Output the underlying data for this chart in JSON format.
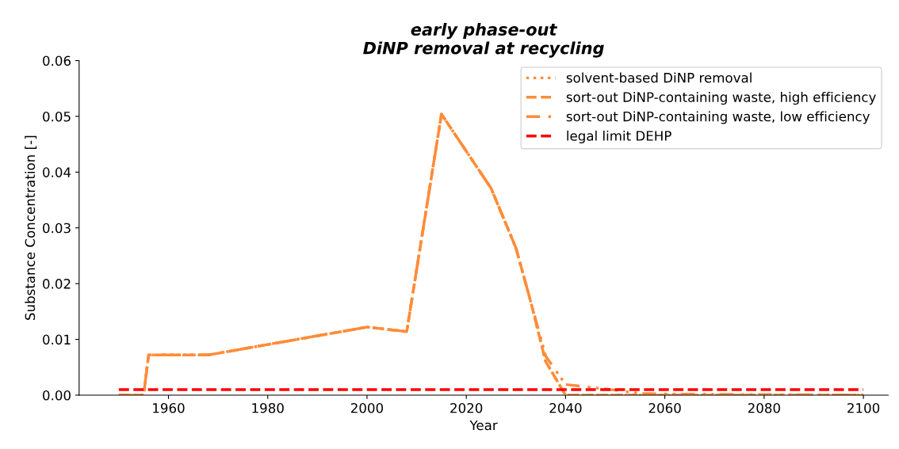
{
  "chart_data": {
    "type": "line",
    "title": "early phase-out\nDiNP removal at recycling",
    "xlabel": "Year",
    "ylabel": "Substance Concentration [-]",
    "xlim": [
      1942,
      2105
    ],
    "xticks": [
      1960,
      1980,
      2000,
      2020,
      2040,
      2060,
      2080,
      2100
    ],
    "ylim": [
      0,
      0.06
    ],
    "yticks": [
      {
        "value": 0,
        "label": "0.00"
      },
      {
        "value": 0.01,
        "label": "0.01"
      },
      {
        "value": 0.02,
        "label": "0.02"
      },
      {
        "value": 0.03,
        "label": "0.03"
      },
      {
        "value": 0.04,
        "label": "0.04"
      },
      {
        "value": 0.05,
        "label": "0.05"
      },
      {
        "value": 0.06,
        "label": "0.06"
      }
    ],
    "grid": false,
    "legend": "top right",
    "marker": "none",
    "series": [
      {
        "name": "solvent-based DiNP removal",
        "color": "#ff8c38",
        "line_style": "dotted",
        "x": [
          1950,
          1955,
          1956,
          1968,
          2000,
          2008,
          2015,
          2025,
          2030,
          2033,
          2036,
          2040,
          2060,
          2100
        ],
        "values": [
          0,
          0,
          0.0072,
          0.0072,
          0.0122,
          0.0114,
          0.0504,
          0.0371,
          0.0264,
          0.0167,
          0.006,
          0,
          0,
          0
        ]
      },
      {
        "name": "sort-out DiNP-containing waste, high efficiency",
        "color": "#ff8c38",
        "line_style": "dashed",
        "x": [
          1950,
          1955,
          1956,
          1968,
          2000,
          2008,
          2015,
          2025,
          2030,
          2033,
          2036,
          2040,
          2060,
          2100
        ],
        "values": [
          0,
          0,
          0.0072,
          0.0072,
          0.0122,
          0.0114,
          0.0504,
          0.0371,
          0.0264,
          0.0167,
          0.006,
          0,
          0,
          0
        ]
      },
      {
        "name": "sort-out DiNP-containing waste, low efficiency",
        "color": "#ff8c38",
        "line_style": "dashdot",
        "x": [
          1950,
          1955,
          1956,
          1968,
          2000,
          2008,
          2015,
          2025,
          2030,
          2033,
          2036,
          2040,
          2050,
          2055,
          2060,
          2100
        ],
        "values": [
          0,
          0,
          0.0072,
          0.0072,
          0.0122,
          0.0114,
          0.0504,
          0.0371,
          0.0264,
          0.0167,
          0.007,
          0.0019,
          0.0009,
          0.0003,
          0.0002,
          0
        ]
      },
      {
        "name": "legal limit DEHP",
        "color": "#ff0000",
        "line_style": "dashed",
        "x": [
          1950,
          2100
        ],
        "values": [
          0.001,
          0.001
        ]
      }
    ]
  }
}
